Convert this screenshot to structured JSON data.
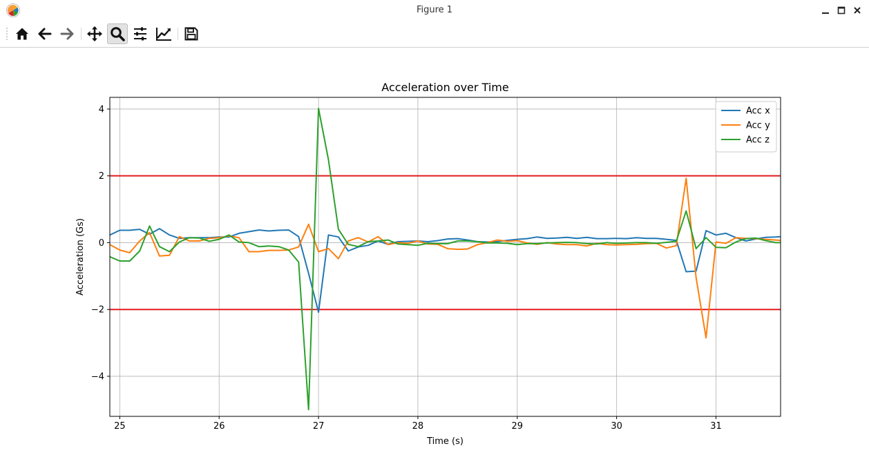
{
  "window": {
    "title": "Figure 1"
  },
  "toolbar": {
    "buttons": [
      {
        "name": "home-button",
        "icon": "home-icon",
        "active": false
      },
      {
        "name": "back-button",
        "icon": "arrow-left-icon",
        "active": false
      },
      {
        "name": "forward-button",
        "icon": "arrow-right-icon",
        "active": false
      },
      {
        "name": "pan-button",
        "icon": "move-icon",
        "active": false
      },
      {
        "name": "zoom-button",
        "icon": "magnifier-icon",
        "active": true
      },
      {
        "name": "configure-subplots-button",
        "icon": "sliders-icon",
        "active": false
      },
      {
        "name": "edit-axis-button",
        "icon": "line-chart-icon",
        "active": false
      },
      {
        "name": "save-button",
        "icon": "floppy-disk-icon",
        "active": false
      }
    ]
  },
  "chart_data": {
    "type": "line",
    "title": "Acceleration over Time",
    "xlabel": "Time (s)",
    "ylabel": "Acceleration (Gs)",
    "xlim": [
      24.9,
      31.65
    ],
    "ylim": [
      -5.2,
      4.35
    ],
    "xticks": [
      25,
      26,
      27,
      28,
      29,
      30,
      31
    ],
    "xtick_labels": [
      "25",
      "26",
      "27",
      "28",
      "29",
      "30",
      "31"
    ],
    "yticks": [
      -4,
      -2,
      0,
      2,
      4
    ],
    "ytick_labels": [
      "−4",
      "−2",
      "0",
      "2",
      "4"
    ],
    "grid": true,
    "legend_position": "top-right",
    "threshold_lines": [
      {
        "y": 2,
        "color": "#e31a1c"
      },
      {
        "y": -2,
        "color": "#e31a1c"
      }
    ],
    "series": [
      {
        "name": "Acc x",
        "color": "#1f77b4",
        "x": [
          24.9,
          25.0,
          25.1,
          25.2,
          25.3,
          25.4,
          25.5,
          25.6,
          25.7,
          25.8,
          25.9,
          26.0,
          26.1,
          26.2,
          26.3,
          26.4,
          26.5,
          26.6,
          26.7,
          26.8,
          26.9,
          27.0,
          27.1,
          27.2,
          27.3,
          27.4,
          27.5,
          27.6,
          27.7,
          27.8,
          27.9,
          28.0,
          28.1,
          28.2,
          28.3,
          28.4,
          28.5,
          28.6,
          28.7,
          28.8,
          28.9,
          29.0,
          29.1,
          29.2,
          29.3,
          29.4,
          29.5,
          29.6,
          29.7,
          29.8,
          29.9,
          30.0,
          30.1,
          30.2,
          30.3,
          30.4,
          30.5,
          30.6,
          30.7,
          30.8,
          30.9,
          31.0,
          31.1,
          31.2,
          31.3,
          31.4,
          31.5,
          31.6,
          31.65
        ],
        "y": [
          0.23,
          0.37,
          0.37,
          0.4,
          0.25,
          0.42,
          0.23,
          0.13,
          0.15,
          0.15,
          0.15,
          0.17,
          0.17,
          0.28,
          0.33,
          0.38,
          0.35,
          0.37,
          0.38,
          0.18,
          -0.92,
          -2.08,
          0.23,
          0.17,
          -0.25,
          -0.13,
          -0.08,
          0.05,
          -0.05,
          0.03,
          0.04,
          0.05,
          0.03,
          0.06,
          0.11,
          0.12,
          0.08,
          0.03,
          0.02,
          0.03,
          0.07,
          0.1,
          0.12,
          0.17,
          0.13,
          0.14,
          0.16,
          0.13,
          0.16,
          0.12,
          0.12,
          0.13,
          0.12,
          0.15,
          0.13,
          0.13,
          0.1,
          0.07,
          -0.87,
          -0.85,
          0.36,
          0.23,
          0.28,
          0.15,
          0.05,
          0.11,
          0.16,
          0.17,
          0.18
        ]
      },
      {
        "name": "Acc y",
        "color": "#ff7f0e",
        "x": [
          24.9,
          25.0,
          25.1,
          25.2,
          25.3,
          25.4,
          25.5,
          25.6,
          25.7,
          25.8,
          25.9,
          26.0,
          26.1,
          26.2,
          26.3,
          26.4,
          26.5,
          26.6,
          26.7,
          26.8,
          26.9,
          27.0,
          27.1,
          27.2,
          27.3,
          27.4,
          27.5,
          27.6,
          27.7,
          27.8,
          27.9,
          28.0,
          28.1,
          28.2,
          28.3,
          28.4,
          28.5,
          28.6,
          28.7,
          28.8,
          28.9,
          29.0,
          29.1,
          29.2,
          29.3,
          29.4,
          29.5,
          29.6,
          29.7,
          29.8,
          29.9,
          30.0,
          30.1,
          30.2,
          30.3,
          30.4,
          30.5,
          30.6,
          30.7,
          30.8,
          30.9,
          31.0,
          31.1,
          31.2,
          31.3,
          31.4,
          31.5,
          31.6,
          31.65
        ],
        "y": [
          -0.06,
          -0.22,
          -0.3,
          0.05,
          0.3,
          -0.4,
          -0.38,
          0.18,
          0.05,
          0.05,
          0.13,
          0.15,
          0.2,
          0.15,
          -0.27,
          -0.27,
          -0.23,
          -0.23,
          -0.22,
          -0.13,
          0.55,
          -0.27,
          -0.18,
          -0.48,
          0.05,
          0.15,
          0.02,
          0.18,
          -0.06,
          0.0,
          -0.02,
          0.05,
          -0.04,
          -0.05,
          -0.18,
          -0.2,
          -0.19,
          -0.06,
          0.0,
          0.08,
          0.04,
          0.06,
          -0.01,
          -0.05,
          0.0,
          -0.04,
          -0.06,
          -0.06,
          -0.1,
          -0.02,
          -0.06,
          -0.07,
          -0.06,
          -0.05,
          -0.03,
          -0.02,
          -0.16,
          -0.09,
          1.93,
          -1.05,
          -2.85,
          0.02,
          -0.02,
          0.15,
          0.13,
          0.12,
          0.1,
          0.08,
          0.07
        ]
      },
      {
        "name": "Acc z",
        "color": "#2ca02c",
        "x": [
          24.9,
          25.0,
          25.1,
          25.2,
          25.3,
          25.4,
          25.5,
          25.6,
          25.7,
          25.8,
          25.9,
          26.0,
          26.1,
          26.2,
          26.3,
          26.4,
          26.5,
          26.6,
          26.7,
          26.8,
          26.9,
          27.0,
          27.1,
          27.2,
          27.3,
          27.4,
          27.5,
          27.6,
          27.7,
          27.8,
          27.9,
          28.0,
          28.1,
          28.2,
          28.3,
          28.4,
          28.5,
          28.6,
          28.7,
          28.8,
          28.9,
          29.0,
          29.1,
          29.2,
          29.3,
          29.4,
          29.5,
          29.6,
          29.7,
          29.8,
          29.9,
          30.0,
          30.1,
          30.2,
          30.3,
          30.4,
          30.5,
          30.6,
          30.7,
          30.8,
          30.9,
          31.0,
          31.1,
          31.2,
          31.3,
          31.4,
          31.5,
          31.6,
          31.65
        ],
        "y": [
          -0.42,
          -0.55,
          -0.55,
          -0.25,
          0.5,
          -0.12,
          -0.27,
          0.02,
          0.15,
          0.14,
          0.04,
          0.1,
          0.23,
          0.02,
          0.0,
          -0.12,
          -0.1,
          -0.12,
          -0.22,
          -0.58,
          -5.0,
          4.02,
          2.48,
          0.4,
          -0.05,
          -0.12,
          0.03,
          0.05,
          0.08,
          -0.04,
          -0.06,
          -0.08,
          -0.02,
          -0.03,
          -0.03,
          0.05,
          0.05,
          0.03,
          -0.01,
          -0.01,
          -0.02,
          -0.06,
          -0.03,
          -0.03,
          -0.01,
          0.0,
          0.01,
          0.0,
          -0.03,
          -0.04,
          0.0,
          -0.02,
          -0.01,
          0.0,
          0.0,
          -0.02,
          0.01,
          0.04,
          0.95,
          -0.18,
          0.15,
          -0.14,
          -0.15,
          0.02,
          0.12,
          0.14,
          0.06,
          0.0,
          0.0
        ]
      }
    ]
  }
}
